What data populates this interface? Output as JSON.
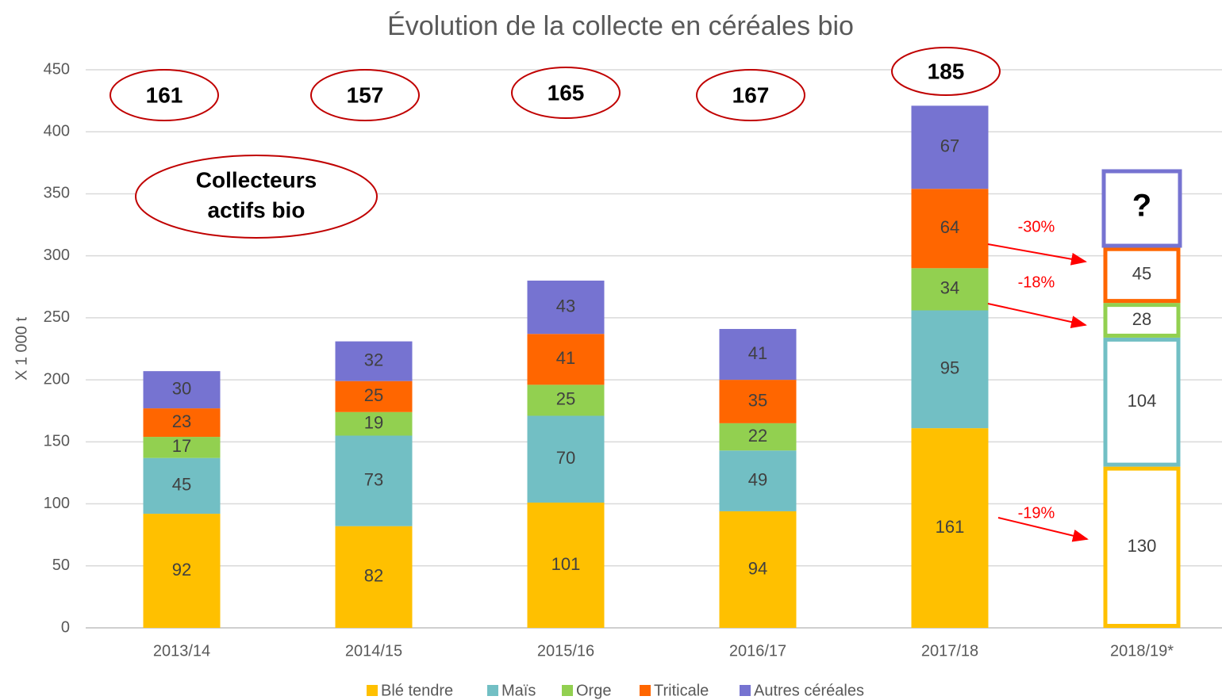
{
  "chart_data": {
    "type": "stacked_bar",
    "title": "Évolution de la collecte en céréales bio",
    "ylabel": "X 1 000 t",
    "categories": [
      "2013/14",
      "2014/15",
      "2015/16",
      "2016/17",
      "2017/18",
      "2018/19*"
    ],
    "series": [
      {
        "name": "Blé tendre",
        "color": "#ffc000",
        "values": [
          92,
          82,
          101,
          94,
          161,
          130
        ]
      },
      {
        "name": "Maïs",
        "color": "#72bfc4",
        "values": [
          45,
          73,
          70,
          49,
          95,
          104
        ]
      },
      {
        "name": "Orge",
        "color": "#92d050",
        "values": [
          17,
          19,
          25,
          22,
          34,
          28
        ]
      },
      {
        "name": "Triticale",
        "color": "#ff6600",
        "values": [
          23,
          25,
          41,
          35,
          64,
          45
        ]
      },
      {
        "name": "Autres céréales",
        "color": "#7673d1",
        "values": [
          30,
          32,
          43,
          41,
          67,
          null
        ]
      }
    ],
    "hollow": [
      false,
      false,
      false,
      false,
      false,
      true
    ],
    "ylim": [
      0,
      450
    ],
    "yticks": [
      0,
      50,
      100,
      150,
      200,
      250,
      300,
      350,
      400,
      450
    ],
    "grid": true,
    "legend": "bottom",
    "collectors_label": [
      "Collecteurs",
      "actifs bio"
    ],
    "collectors": [
      161,
      157,
      165,
      167,
      185
    ],
    "unknown": "?",
    "changes": [
      "-30%",
      "-18%",
      "-19%"
    ]
  }
}
